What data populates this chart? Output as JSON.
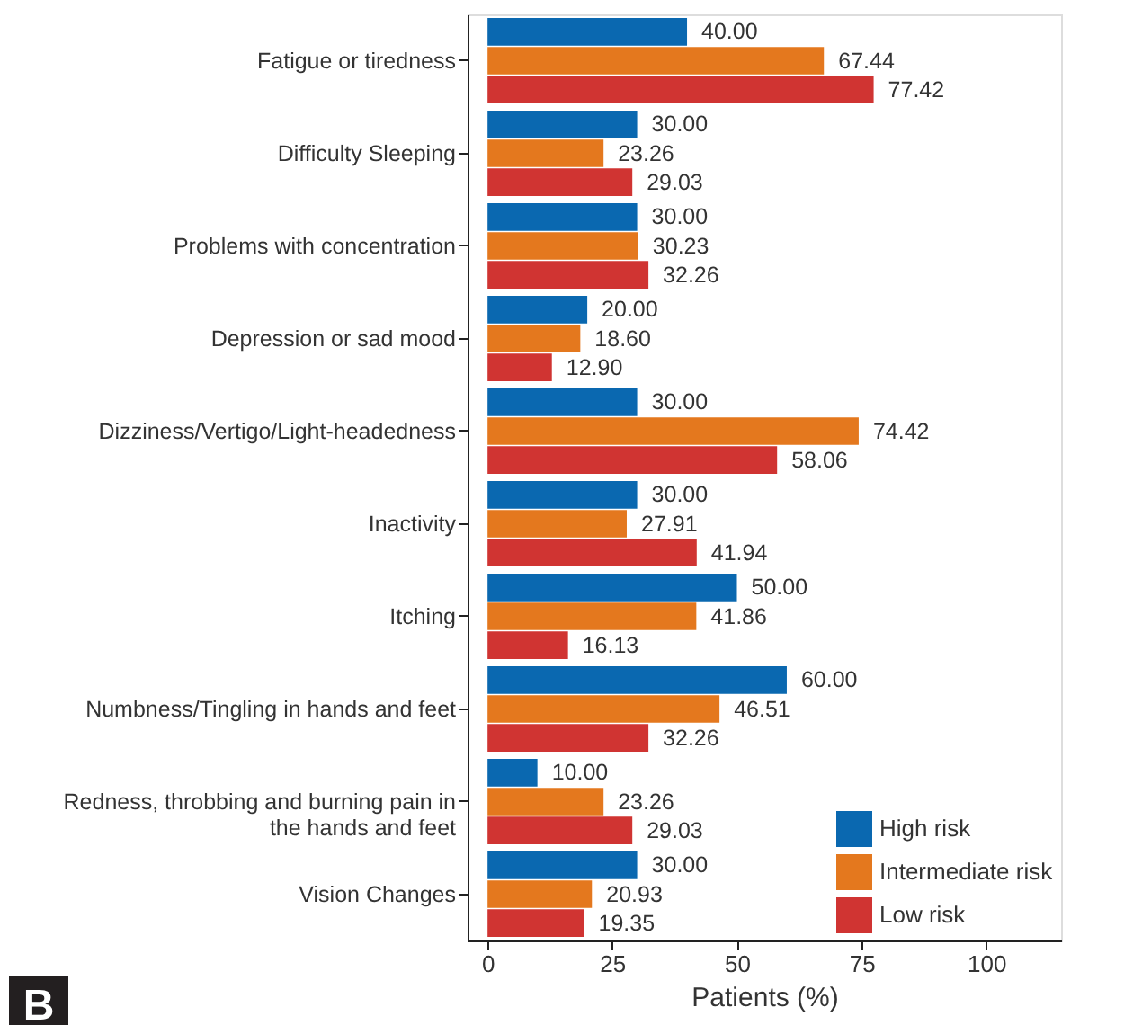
{
  "chart_data": {
    "type": "bar",
    "orientation": "horizontal",
    "xlabel": "Patients (%)",
    "categories": [
      "Fatigue or tiredness",
      "Difficulty Sleeping",
      "Problems with concentration",
      "Depression or sad mood",
      "Dizziness/Vertigo/Light-headedness",
      "Inactivity",
      "Itching",
      "Numbness/Tingling in hands and feet",
      "Redness, throbbing and burning pain in\nthe hands and feet",
      "Vision Changes"
    ],
    "series": [
      {
        "name": "High risk",
        "color": "#0a68b0",
        "values": [
          40.0,
          30.0,
          30.0,
          20.0,
          30.0,
          30.0,
          50.0,
          60.0,
          10.0,
          30.0
        ],
        "value_labels": [
          "40.00",
          "30.00",
          "30.00",
          "20.00",
          "30.00",
          "30.00",
          "50.00",
          "60.00",
          "10.00",
          "30.00"
        ]
      },
      {
        "name": "Intermediate risk",
        "color": "#e4781e",
        "values": [
          67.44,
          23.26,
          30.23,
          18.6,
          74.42,
          27.91,
          41.86,
          46.51,
          23.26,
          20.93
        ],
        "value_labels": [
          "67.44",
          "23.26",
          "30.23",
          "18.60",
          "74.42",
          "27.91",
          "41.86",
          "46.51",
          "23.26",
          "20.93"
        ]
      },
      {
        "name": "Low risk",
        "color": "#d03432",
        "values": [
          77.42,
          29.03,
          32.26,
          12.9,
          58.06,
          41.94,
          16.13,
          32.26,
          29.03,
          19.35
        ],
        "value_labels": [
          "77.42",
          "29.03",
          "32.26",
          "12.90",
          "58.06",
          "41.94",
          "16.13",
          "32.26",
          "29.03",
          "19.35"
        ]
      }
    ],
    "xlim": [
      -4,
      115
    ],
    "xticks": [
      0,
      25,
      50,
      75,
      100
    ],
    "grid": false,
    "legend": "bottom right",
    "annotations": [
      "B"
    ]
  }
}
